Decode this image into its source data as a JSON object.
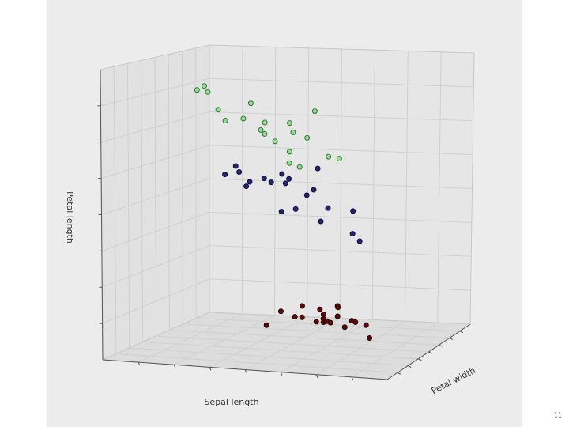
{
  "chart_data": {
    "type": "scatter3d",
    "x_label": "Sepal length",
    "y_label": "Petal width",
    "z_label": "Petal length",
    "xlim": [
      8,
      4
    ],
    "ylim": [
      0,
      2.6
    ],
    "zlim": [
      0,
      8
    ],
    "series": [
      {
        "color": "#5a0a0a",
        "edge": "#2a0000",
        "x": [
          5.1,
          4.9,
          4.7,
          4.6,
          5.0,
          5.4,
          4.6,
          5.0,
          4.4,
          4.9,
          5.4,
          4.8,
          4.3,
          5.8,
          5.7,
          5.1,
          5.1,
          4.8,
          5.0,
          5.3
        ],
        "y": [
          0.2,
          0.2,
          0.2,
          0.2,
          0.2,
          0.4,
          0.3,
          0.2,
          0.2,
          0.1,
          0.2,
          0.2,
          0.1,
          0.2,
          0.4,
          0.3,
          0.4,
          0.2,
          0.6,
          0.2
        ],
        "z": [
          1.4,
          1.4,
          1.3,
          1.5,
          1.4,
          1.7,
          1.4,
          1.5,
          1.4,
          1.5,
          1.5,
          1.6,
          1.1,
          1.2,
          1.5,
          1.7,
          1.5,
          1.9,
          1.6,
          1.5
        ]
      },
      {
        "color": "#23236e",
        "edge": "#10103a",
        "x": [
          7.0,
          6.4,
          6.9,
          5.5,
          6.5,
          5.7,
          6.3,
          4.9,
          6.6,
          5.2,
          5.0,
          5.9,
          6.0,
          6.1,
          5.6,
          6.7,
          5.8,
          6.2,
          5.9,
          6.8
        ],
        "y": [
          1.4,
          1.5,
          1.5,
          1.3,
          1.5,
          1.3,
          1.6,
          1.0,
          1.3,
          1.4,
          1.0,
          1.5,
          1.0,
          1.4,
          1.3,
          1.4,
          1.0,
          1.5,
          1.8,
          1.4
        ],
        "z": [
          4.7,
          4.5,
          4.9,
          4.0,
          4.6,
          4.5,
          4.7,
          3.3,
          4.6,
          3.9,
          3.5,
          4.2,
          4.0,
          4.7,
          3.6,
          4.4,
          4.1,
          4.5,
          4.8,
          4.8
        ]
      },
      {
        "color": "#9bd89b",
        "edge": "#2f7a2f",
        "x": [
          6.3,
          5.8,
          7.1,
          6.5,
          7.6,
          7.3,
          6.7,
          7.2,
          6.4,
          6.8,
          5.7,
          6.5,
          7.7,
          6.0,
          6.9,
          7.7,
          6.3,
          7.2,
          6.1,
          6.4
        ],
        "y": [
          2.5,
          1.9,
          2.1,
          2.2,
          2.1,
          1.8,
          1.8,
          2.5,
          2.0,
          2.1,
          2.0,
          1.8,
          2.2,
          1.5,
          2.3,
          2.0,
          1.8,
          1.8,
          1.9,
          2.1
        ],
        "z": [
          6.0,
          5.1,
          5.9,
          5.8,
          6.6,
          6.3,
          5.8,
          6.1,
          5.1,
          5.5,
          5.0,
          5.5,
          6.7,
          5.0,
          5.7,
          6.7,
          4.9,
          6.0,
          5.6,
          5.6
        ]
      }
    ]
  },
  "page_number": "11"
}
